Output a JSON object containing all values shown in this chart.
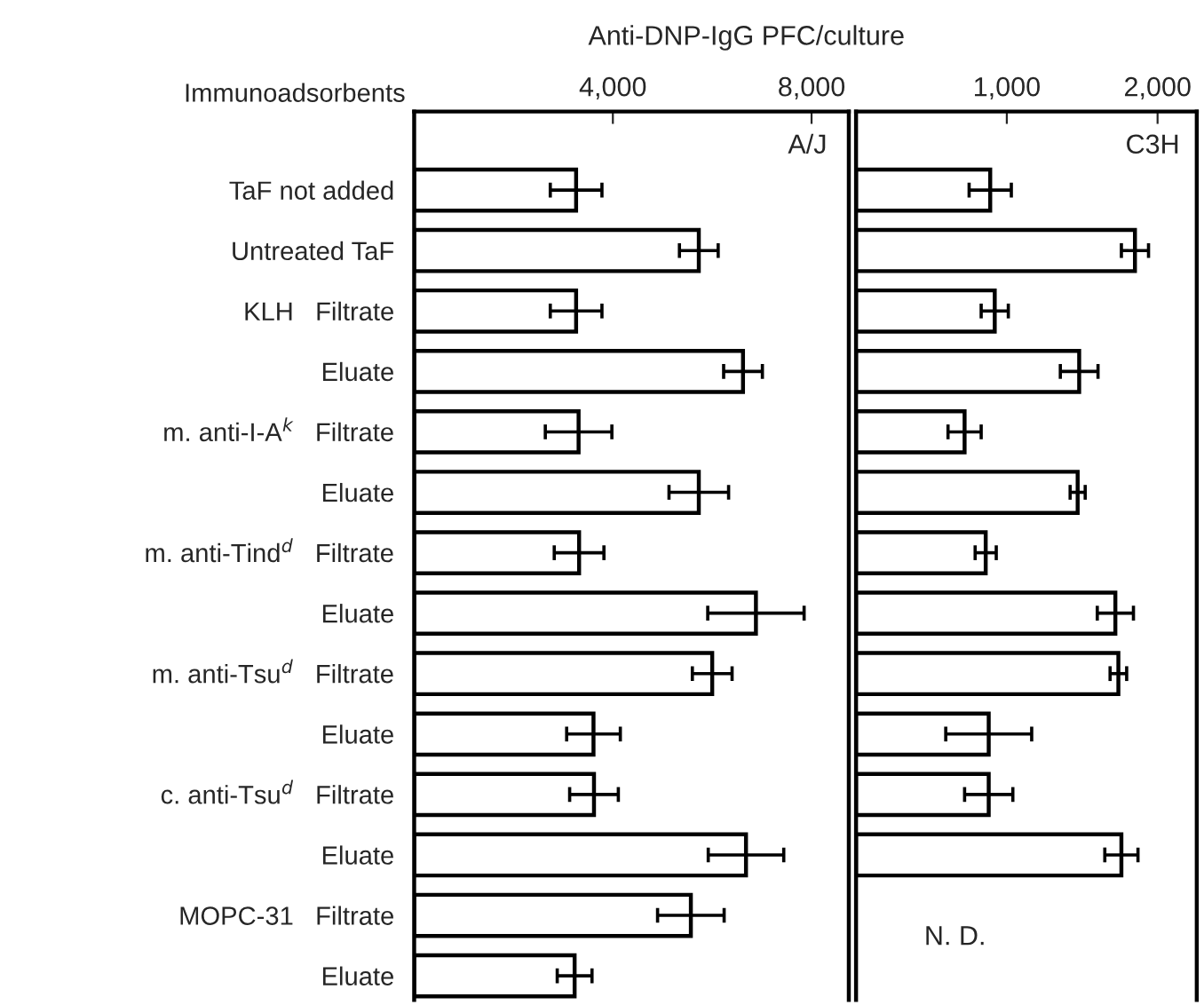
{
  "chart_data": [
    {
      "type": "bar",
      "orientation": "horizontal",
      "title": "A/J",
      "xlabel": "Anti-DNP-IgG PFC/culture",
      "ylabel": "Immunoadsorbents",
      "color": "#ffffff",
      "categories": [
        "TaF not added",
        "Untreated TaF",
        "KLH   Filtrate",
        "Eluate",
        "m. anti-I-A$^{k}$   Filtrate",
        "Eluate",
        "m. anti-Tind$^{d}$   Filtrate",
        "Eluate",
        "m. anti-Tsu$^{d}$   Filtrate",
        "Eluate",
        "c. anti-Tsu$^{d}$   Filtrate",
        "Eluate",
        "MOPC-31   Filtrate",
        "Eluate"
      ],
      "values": [
        3260,
        5730,
        3260,
        6620,
        3310,
        5730,
        3320,
        6880,
        6000,
        3610,
        3620,
        6680,
        5570,
        3230
      ],
      "errors": [
        520,
        390,
        520,
        390,
        670,
        600,
        500,
        970,
        400,
        540,
        490,
        760,
        670,
        350
      ],
      "xlim": [
        0,
        8750
      ],
      "xticks": [
        {
          "value": 4000,
          "label": "4,000"
        },
        {
          "value": 8000,
          "label": "8,000"
        }
      ],
      "grid": false
    },
    {
      "type": "bar",
      "orientation": "horizontal",
      "title": "C3H",
      "color": "#ffffff",
      "tick_labels": "x",
      "annotations": [
        "N. D."
      ],
      "values": [
        890,
        1850,
        920,
        1480,
        720,
        1470,
        860,
        1720,
        1740,
        880,
        880,
        1760,
        null,
        null
      ],
      "errors": [
        140,
        90,
        90,
        125,
        110,
        50,
        70,
        120,
        55,
        285,
        160,
        110,
        null,
        null
      ],
      "xlim": [
        0,
        2260
      ],
      "xticks": [
        {
          "value": 1000,
          "label": "1,000"
        },
        {
          "value": 2000,
          "label": "2,000"
        }
      ],
      "grid": false
    }
  ]
}
